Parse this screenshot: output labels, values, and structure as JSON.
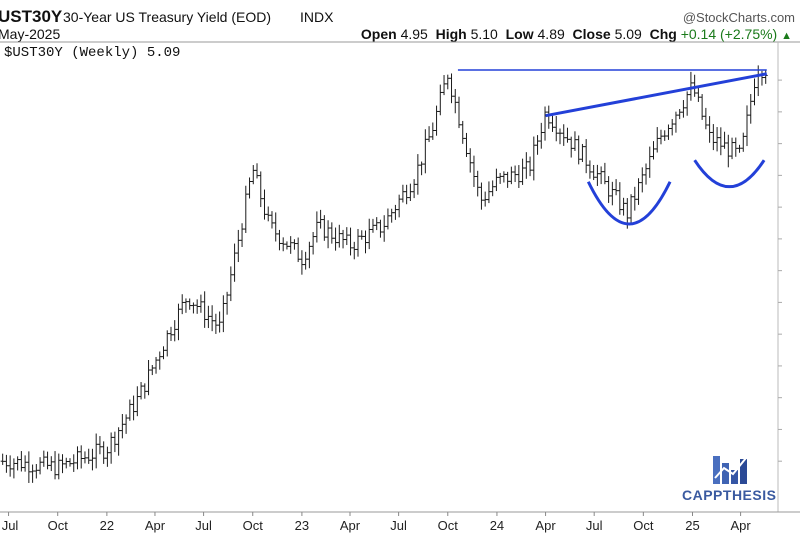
{
  "header": {
    "symbol": "UST30Y",
    "title": "30-Year US Treasury Yield (EOD)",
    "exchange": "INDX",
    "brand": "@StockCharts.com",
    "date": "May-2025",
    "open_label": "Open",
    "open": "4.95",
    "high_label": "High",
    "high": "5.10",
    "low_label": "Low",
    "low": "4.89",
    "close_label": "Close",
    "close": "5.09",
    "chg_label": "Chg",
    "chg": "+0.14 (+2.75%)"
  },
  "legend": {
    "text": "$UST30Y (Weekly) 5.09"
  },
  "logo": {
    "text": "CAPPTHESIS",
    "color": "#3a5aa0"
  },
  "colors": {
    "bars": "#1a1a1a",
    "annotation": "#2340d8",
    "grid": "#dcdcdc"
  },
  "chart_data": {
    "type": "line",
    "ylim": [
      1.6,
      5.3
    ],
    "x_tick_labels": [
      "Jul",
      "Oct",
      "22",
      "Apr",
      "Jul",
      "Oct",
      "23",
      "Apr",
      "Jul",
      "Oct",
      "24",
      "Apr",
      "Jul",
      "Oct",
      "25",
      "Apr"
    ],
    "series": [
      {
        "name": "$UST30Y (Weekly)",
        "x": [
          "2021-07",
          "2021-10",
          "2022-01",
          "2022-03",
          "2022-05",
          "2022-06",
          "2022-08",
          "2022-10",
          "2022-11",
          "2023-01",
          "2023-02",
          "2023-04",
          "2023-06",
          "2023-08",
          "2023-09",
          "2023-10",
          "2023-12",
          "2024-01",
          "2024-03",
          "2024-04",
          "2024-06",
          "2024-09",
          "2024-11",
          "2025-01",
          "2025-02",
          "2025-04",
          "2025-05"
        ],
        "values": [
          2.0,
          1.95,
          2.1,
          2.5,
          3.05,
          3.3,
          3.05,
          4.3,
          3.85,
          3.6,
          3.85,
          3.7,
          3.85,
          4.25,
          4.6,
          5.05,
          4.05,
          4.2,
          4.3,
          4.75,
          4.45,
          3.95,
          4.55,
          4.95,
          4.55,
          4.4,
          5.09
        ]
      }
    ],
    "annotations": [
      {
        "type": "horizontal-line",
        "label": "",
        "y": 5.05
      },
      {
        "type": "rising-trendline",
        "from": [
          "2024-04",
          4.72
        ],
        "to": [
          "2025-05",
          5.05
        ]
      },
      {
        "type": "arc",
        "label": "",
        "center": [
          "2024-09",
          3.95
        ]
      },
      {
        "type": "arc",
        "label": "",
        "center": [
          "2025-04",
          4.3
        ]
      }
    ]
  }
}
